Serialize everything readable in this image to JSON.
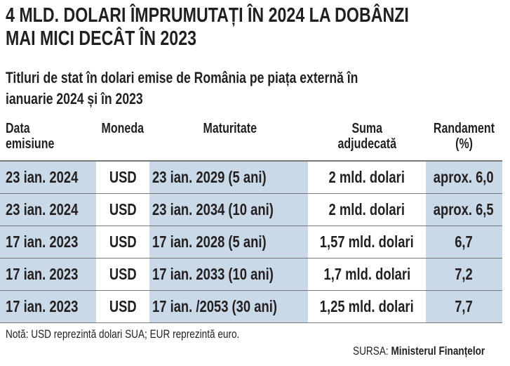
{
  "title_lines": [
    "4 MLD. DOLARI ÎMPRUMUTAȚI ÎN 2024 LA DOBÂNZI",
    "MAI MICI DECÂT ÎN 2023"
  ],
  "subtitle_lines": [
    "Titluri de stat în dolari emise de România pe piața externă în",
    "ianuarie 2024 și în 2023"
  ],
  "headers": [
    {
      "line1": "Data",
      "line2": "emisiune"
    },
    {
      "line1": "Moneda",
      "line2": ""
    },
    {
      "line1": "Maturitate",
      "line2": ""
    },
    {
      "line1": "Suma",
      "line2": "adjudecată"
    },
    {
      "line1": "Randament",
      "line2": "(%)"
    }
  ],
  "rows": [
    [
      "23 ian. 2024",
      "USD",
      "23 ian. 2029 (5 ani)",
      "2 mld. dolari",
      "aprox. 6,0"
    ],
    [
      "23 ian. 2024",
      "USD",
      "23 ian. 2034 (10 ani)",
      "2 mld. dolari",
      "aprox. 6,5"
    ],
    [
      "17 ian. 2023",
      "USD",
      "17 ian. 2028 (5 ani)",
      "1,57 mld. dolari",
      "6,7"
    ],
    [
      "17 ian. 2023",
      "USD",
      "17 ian. 2033 (10 ani)",
      "1,7 mld. dolari",
      "7,2"
    ],
    [
      "17 ian. 2023",
      "USD",
      "17 ian. /2053 (30 ani)",
      "1,25 mld. dolari",
      "7,7"
    ]
  ],
  "note": "Notă: USD reprezintă dolari SUA; EUR reprezintă euro.",
  "source_label": "SURSA:",
  "source_name": "Ministerul Finanțelor",
  "colors": {
    "shade": "#c9d9e8",
    "text": "#231f20"
  }
}
